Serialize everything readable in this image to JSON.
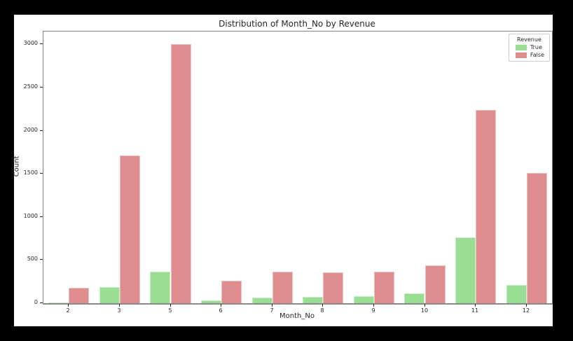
{
  "frame": {
    "background_color": "#000000",
    "figure_background_color": "#ffffff"
  },
  "chart_data": {
    "type": "bar",
    "title": "Distribution of Month_No by Revenue",
    "xlabel": "Month_No",
    "ylabel": "Count",
    "categories": [
      "2",
      "3",
      "5",
      "6",
      "7",
      "8",
      "9",
      "10",
      "11",
      "12"
    ],
    "series": [
      {
        "name": "True",
        "color": "#9ade94",
        "values": [
          10,
          190,
          365,
          30,
          65,
          75,
          85,
          115,
          760,
          215
        ]
      },
      {
        "name": "False",
        "color": "#df8d8e",
        "values": [
          180,
          1715,
          3000,
          260,
          365,
          360,
          365,
          435,
          2240,
          1510
        ]
      }
    ],
    "ylim": [
      0,
      3150
    ],
    "yticks": [
      0,
      500,
      1000,
      1500,
      2000,
      2500,
      3000
    ],
    "grid": false,
    "legend": {
      "title": "Revenue",
      "position": "upper right",
      "entries": [
        "True",
        "False"
      ]
    }
  }
}
